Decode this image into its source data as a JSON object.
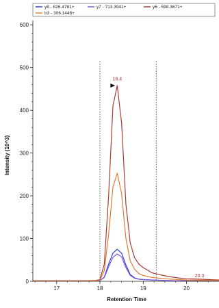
{
  "chart_data": {
    "type": "line",
    "xlabel": "Retention Time",
    "ylabel": "Intensity (10^3)",
    "xlim": [
      16.45,
      20.75
    ],
    "ylim": [
      0,
      610
    ],
    "x_ticks": [
      17,
      18,
      19,
      20
    ],
    "y_ticks": [
      0,
      100,
      200,
      300,
      400,
      500,
      600
    ],
    "grid": false,
    "legend_position": "top",
    "integration_boundaries": [
      18.0,
      19.3
    ],
    "peak_apex_marker": {
      "x": 18.4,
      "y": 458
    },
    "annotations": [
      {
        "text": "18.4",
        "x": 18.4,
        "y": 470
      },
      {
        "text": "20.3",
        "x": 20.3,
        "y": 10
      }
    ],
    "series": [
      {
        "name": "y8 - 826.4781+",
        "color": "#2a3fd6",
        "points": [
          [
            16.45,
            1
          ],
          [
            17.0,
            1
          ],
          [
            17.5,
            1
          ],
          [
            17.9,
            1
          ],
          [
            18.0,
            2
          ],
          [
            18.1,
            10
          ],
          [
            18.2,
            40
          ],
          [
            18.3,
            66
          ],
          [
            18.4,
            75
          ],
          [
            18.5,
            66
          ],
          [
            18.6,
            38
          ],
          [
            18.7,
            16
          ],
          [
            18.8,
            8
          ],
          [
            18.9,
            5
          ],
          [
            19.0,
            4
          ],
          [
            19.2,
            3
          ],
          [
            19.5,
            2
          ],
          [
            20.0,
            1
          ],
          [
            20.75,
            1
          ]
        ]
      },
      {
        "name": "y7 - 713.3941+",
        "color": "#7b55dd",
        "points": [
          [
            16.45,
            1
          ],
          [
            17.0,
            1
          ],
          [
            17.5,
            1
          ],
          [
            17.9,
            1
          ],
          [
            18.0,
            2
          ],
          [
            18.1,
            9
          ],
          [
            18.2,
            34
          ],
          [
            18.3,
            56
          ],
          [
            18.4,
            64
          ],
          [
            18.5,
            57
          ],
          [
            18.6,
            32
          ],
          [
            18.7,
            14
          ],
          [
            18.8,
            7
          ],
          [
            18.9,
            5
          ],
          [
            19.0,
            4
          ],
          [
            19.2,
            3
          ],
          [
            19.5,
            2
          ],
          [
            20.0,
            1
          ],
          [
            20.75,
            1
          ]
        ]
      },
      {
        "name": "y6 - 598.3671+",
        "color": "#a83a32",
        "points": [
          [
            16.45,
            1
          ],
          [
            17.0,
            1
          ],
          [
            17.5,
            1
          ],
          [
            17.9,
            2
          ],
          [
            18.0,
            4
          ],
          [
            18.1,
            40
          ],
          [
            18.2,
            200
          ],
          [
            18.3,
            410
          ],
          [
            18.4,
            458
          ],
          [
            18.5,
            370
          ],
          [
            18.6,
            180
          ],
          [
            18.7,
            90
          ],
          [
            18.8,
            55
          ],
          [
            18.9,
            40
          ],
          [
            19.0,
            32
          ],
          [
            19.2,
            20
          ],
          [
            19.4,
            15
          ],
          [
            19.6,
            11
          ],
          [
            19.8,
            8
          ],
          [
            20.0,
            6
          ],
          [
            20.3,
            5
          ],
          [
            20.75,
            3
          ]
        ]
      },
      {
        "name": "b3 - 306.1448+",
        "color": "#e07a2e",
        "points": [
          [
            16.45,
            1
          ],
          [
            17.0,
            1
          ],
          [
            17.5,
            1
          ],
          [
            17.9,
            1
          ],
          [
            18.0,
            3
          ],
          [
            18.1,
            25
          ],
          [
            18.2,
            110
          ],
          [
            18.3,
            220
          ],
          [
            18.4,
            253
          ],
          [
            18.5,
            205
          ],
          [
            18.6,
            100
          ],
          [
            18.7,
            48
          ],
          [
            18.8,
            28
          ],
          [
            18.9,
            18
          ],
          [
            19.0,
            14
          ],
          [
            19.2,
            9
          ],
          [
            19.5,
            6
          ],
          [
            20.0,
            3
          ],
          [
            20.75,
            2
          ]
        ]
      }
    ]
  }
}
